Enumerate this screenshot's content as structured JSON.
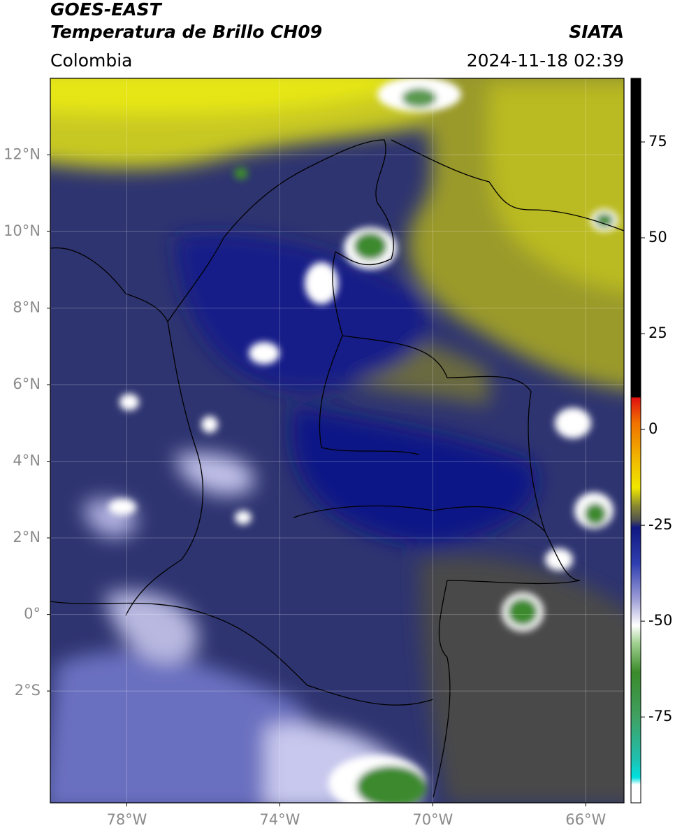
{
  "header": {
    "satellite": "GOES-EAST",
    "product": "Temperatura de Brillo CH09",
    "source": "SIATA",
    "region": "Colombia",
    "datetime": "2024-11-18 02:39"
  },
  "map": {
    "xlim": [
      -80,
      -65
    ],
    "ylim": [
      -4.92,
      14
    ],
    "xticks": [
      {
        "value": -78,
        "label": "78°W"
      },
      {
        "value": -74,
        "label": "74°W"
      },
      {
        "value": -70,
        "label": "70°W"
      },
      {
        "value": -66,
        "label": "66°W"
      }
    ],
    "yticks": [
      {
        "value": 12,
        "label": "12°N"
      },
      {
        "value": 10,
        "label": "10°N"
      },
      {
        "value": 8,
        "label": "8°N"
      },
      {
        "value": 6,
        "label": "6°N"
      },
      {
        "value": 4,
        "label": "4°N"
      },
      {
        "value": 2,
        "label": "2°N"
      },
      {
        "value": 0,
        "label": "0°"
      },
      {
        "value": -2,
        "label": "2°S"
      }
    ],
    "grid": true
  },
  "colorbar": {
    "lim": [
      -97.4,
      91.6
    ],
    "ticks": [
      75,
      50,
      25,
      0,
      -25,
      -50,
      -75
    ]
  }
}
